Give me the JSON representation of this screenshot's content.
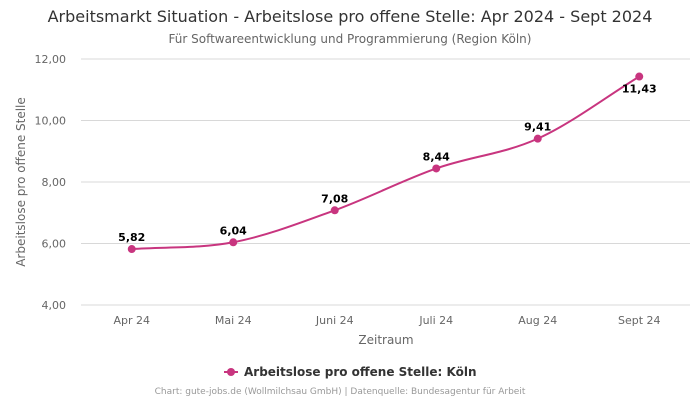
{
  "chart_data": {
    "type": "line",
    "title": "Arbeitsmarkt Situation - Arbeitslose pro offene Stelle: Apr 2024 - Sept 2024",
    "subtitle": "Für Softwareentwicklung und Programmierung (Region Köln)",
    "xlabel": "Zeitraum",
    "ylabel": "Arbeitslose pro offene Stelle",
    "categories": [
      "Apr 24",
      "Mai 24",
      "Juni 24",
      "Juli 24",
      "Aug 24",
      "Sept 24"
    ],
    "series": [
      {
        "name": "Arbeitslose pro offene Stelle: Köln",
        "values": [
          5.82,
          6.04,
          7.08,
          8.44,
          9.41,
          11.43
        ],
        "labels": [
          "5,82",
          "6,04",
          "7,08",
          "8,44",
          "9,41",
          "11,43"
        ],
        "color": "#c8357f"
      }
    ],
    "ylim": [
      4,
      12
    ],
    "yticks": [
      4,
      6,
      8,
      10,
      12
    ],
    "ytick_labels": [
      "4,00",
      "6,00",
      "8,00",
      "10,00",
      "12,00"
    ],
    "grid": true,
    "legend_position": "bottom-center",
    "credits": "Chart: gute-jobs.de (Wollmilchsau GmbH) | Datenquelle: Bundesagentur für Arbeit"
  }
}
